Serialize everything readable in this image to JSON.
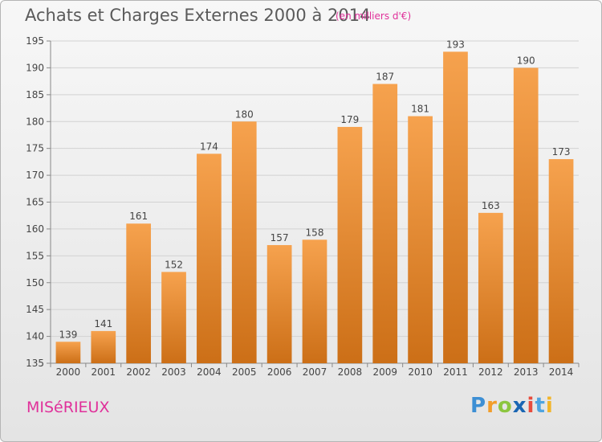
{
  "header": {
    "title": "Achats et Charges Externes 2000 à 2014",
    "subtitle": "(en milliers d'€)"
  },
  "footer": {
    "commune": "MISéRIEUX",
    "logo_text": "Proxiti"
  },
  "colors": {
    "bar_top": "#f6a24e",
    "bar_bottom": "#cc6f17",
    "accent": "#e0309a"
  },
  "chart_data": {
    "type": "bar",
    "title": "Achats et Charges Externes 2000 à 2014",
    "subtitle": "(en milliers d'€)",
    "categories": [
      "2000",
      "2001",
      "2002",
      "2003",
      "2004",
      "2005",
      "2006",
      "2007",
      "2008",
      "2009",
      "2010",
      "2011",
      "2012",
      "2013",
      "2014"
    ],
    "values": [
      139,
      141,
      161,
      152,
      174,
      180,
      157,
      158,
      179,
      187,
      181,
      193,
      163,
      190,
      173
    ],
    "ylim": [
      135,
      195
    ],
    "yticks": [
      135,
      140,
      145,
      150,
      155,
      160,
      165,
      170,
      175,
      180,
      185,
      190,
      195
    ],
    "grid": true,
    "legend": "none"
  }
}
